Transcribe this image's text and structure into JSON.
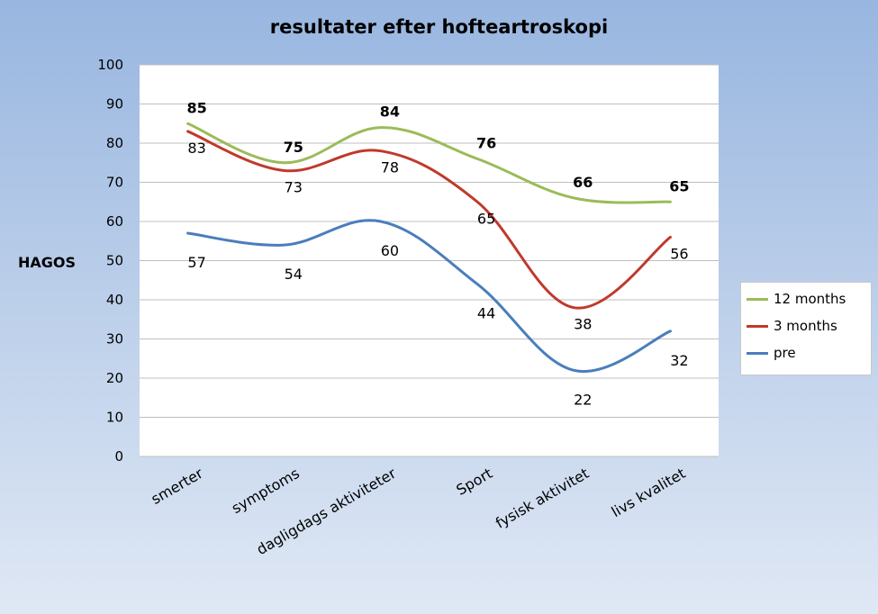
{
  "chart_data": {
    "type": "line",
    "title": "resultater efter hofteartroskopi",
    "ylabel": "HAGOS",
    "xlabel": "",
    "categories": [
      "smerter",
      "symptoms",
      "dagligdags aktiviteter",
      "Sport",
      "fysisk aktivitet",
      "livs kvalitet"
    ],
    "ylim": [
      0,
      100
    ],
    "yticks": [
      "0",
      "10",
      "20",
      "30",
      "40",
      "50",
      "60",
      "70",
      "80",
      "90",
      "100"
    ],
    "grid": true,
    "legend_position": "right",
    "series": [
      {
        "name": "12 months",
        "color": "#9bbb59",
        "label_weight": "bold",
        "values": [
          85,
          75,
          84,
          76,
          66,
          65
        ]
      },
      {
        "name": "3 months",
        "color": "#c0392b",
        "label_weight": "normal",
        "values": [
          83,
          73,
          78,
          65,
          38,
          56
        ]
      },
      {
        "name": "pre",
        "color": "#4a7ebb",
        "label_weight": "normal",
        "values": [
          57,
          54,
          60,
          44,
          22,
          32
        ]
      }
    ]
  }
}
